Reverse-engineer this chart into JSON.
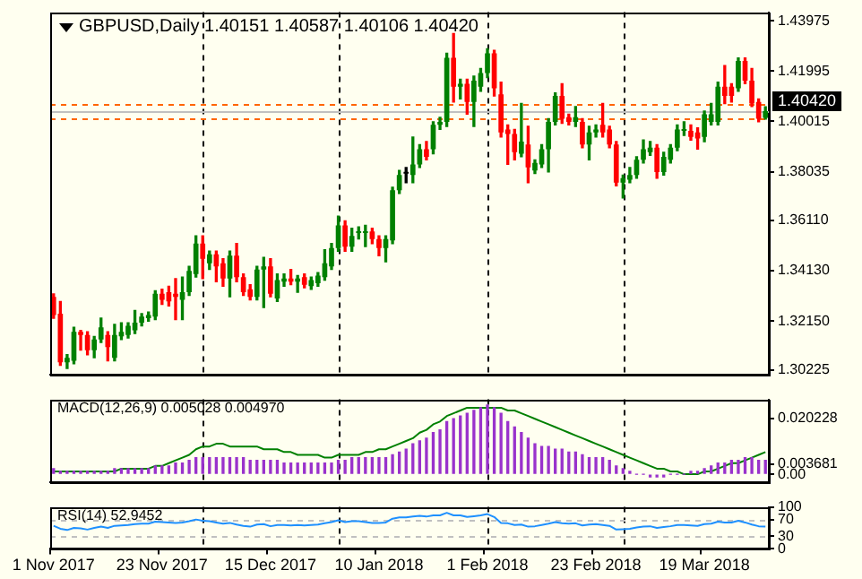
{
  "chart_data": [
    {
      "type": "candlestick",
      "title": "GBPUSD,Daily 1.40151 1.40587 1.40106 1.40420",
      "tick_labels": "y",
      "ohlc": [
        [
          1.331,
          1.3322,
          1.3226,
          1.3238
        ],
        [
          1.3244,
          1.3292,
          1.304,
          1.3052
        ],
        [
          1.3052,
          1.3082,
          1.3028,
          1.307
        ],
        [
          1.3058,
          1.319,
          1.3046,
          1.3172
        ],
        [
          1.3172,
          1.3178,
          1.31,
          1.316
        ],
        [
          1.316,
          1.3172,
          1.3082,
          1.31
        ],
        [
          1.31,
          1.3154,
          1.307,
          1.3142
        ],
        [
          1.3142,
          1.3226,
          1.313,
          1.319
        ],
        [
          1.316,
          1.3172,
          1.3058,
          1.3112
        ],
        [
          1.307,
          1.3202,
          1.3058,
          1.316
        ],
        [
          1.3154,
          1.3208,
          1.3142,
          1.3172
        ],
        [
          1.316,
          1.3208,
          1.3148,
          1.3196
        ],
        [
          1.3178,
          1.3256,
          1.3166,
          1.3208
        ],
        [
          1.3208,
          1.3244,
          1.3196,
          1.3232
        ],
        [
          1.3226,
          1.325,
          1.3214,
          1.3238
        ],
        [
          1.3232,
          1.3334,
          1.322,
          1.3322
        ],
        [
          1.3322,
          1.334,
          1.328,
          1.3298
        ],
        [
          1.3328,
          1.3352,
          1.3274,
          1.3292
        ],
        [
          1.3322,
          1.3382,
          1.322,
          1.331
        ],
        [
          1.3298,
          1.3388,
          1.322,
          1.3328
        ],
        [
          1.3328,
          1.343,
          1.3316,
          1.3412
        ],
        [
          1.34,
          1.355,
          1.3388,
          1.352
        ],
        [
          1.352,
          1.355,
          1.3382,
          1.346
        ],
        [
          1.3442,
          1.349,
          1.3418,
          1.3478
        ],
        [
          1.3478,
          1.349,
          1.337,
          1.343
        ],
        [
          1.3442,
          1.346,
          1.3352,
          1.3382
        ],
        [
          1.3382,
          1.349,
          1.331,
          1.3472
        ],
        [
          1.3472,
          1.352,
          1.337,
          1.3388
        ],
        [
          1.3388,
          1.34,
          1.3316,
          1.3328
        ],
        [
          1.334,
          1.3358,
          1.3298,
          1.331
        ],
        [
          1.331,
          1.343,
          1.3298,
          1.3418
        ],
        [
          1.3418,
          1.3466,
          1.3268,
          1.343
        ],
        [
          1.343,
          1.346,
          1.331,
          1.3322
        ],
        [
          1.3304,
          1.34,
          1.3292,
          1.3376
        ],
        [
          1.337,
          1.34,
          1.3352,
          1.3382
        ],
        [
          1.3382,
          1.3418,
          1.3358,
          1.337
        ],
        [
          1.337,
          1.3394,
          1.3328,
          1.3382
        ],
        [
          1.3388,
          1.34,
          1.3346,
          1.3358
        ],
        [
          1.3352,
          1.3388,
          1.334,
          1.3376
        ],
        [
          1.3364,
          1.3406,
          1.3352,
          1.3394
        ],
        [
          1.3388,
          1.3496,
          1.3376,
          1.3442
        ],
        [
          1.343,
          1.352,
          1.3418,
          1.3502
        ],
        [
          1.3502,
          1.3628,
          1.349,
          1.3592
        ],
        [
          1.3592,
          1.361,
          1.349,
          1.3508
        ],
        [
          1.3508,
          1.358,
          1.349,
          1.355
        ],
        [
          1.3562,
          1.3586,
          1.3538,
          1.3568
        ],
        [
          1.3562,
          1.3592,
          1.3508,
          1.3568
        ],
        [
          1.3568,
          1.358,
          1.352,
          1.3538
        ],
        [
          1.3538,
          1.355,
          1.3472,
          1.3502
        ],
        [
          1.3502,
          1.355,
          1.3448,
          1.3538
        ],
        [
          1.3532,
          1.3742,
          1.352,
          1.373
        ],
        [
          1.373,
          1.3808,
          1.3718,
          1.379
        ],
        [
          1.3796,
          1.382,
          1.376,
          1.3796
        ],
        [
          1.379,
          1.394,
          1.376,
          1.3832
        ],
        [
          1.3832,
          1.391,
          1.382,
          1.3892
        ],
        [
          1.3892,
          1.3922,
          1.385,
          1.3862
        ],
        [
          1.3892,
          1.4,
          1.3874,
          1.3988
        ],
        [
          1.3988,
          1.4018,
          1.397,
          1.4
        ],
        [
          1.4,
          1.427,
          1.3982,
          1.4252
        ],
        [
          1.4252,
          1.4348,
          1.4078,
          1.4138
        ],
        [
          1.4138,
          1.4168,
          1.409,
          1.415
        ],
        [
          1.415,
          1.4168,
          1.403,
          1.4078
        ],
        [
          1.4078,
          1.418,
          1.3982,
          1.4162
        ],
        [
          1.4138,
          1.421,
          1.412,
          1.4192
        ],
        [
          1.4192,
          1.4288,
          1.4174,
          1.427
        ],
        [
          1.427,
          1.4282,
          1.4102,
          1.4132
        ],
        [
          1.4108,
          1.4156,
          1.394,
          1.3958
        ],
        [
          1.397,
          1.3988,
          1.3832,
          1.3952
        ],
        [
          1.3952,
          1.397,
          1.385,
          1.388
        ],
        [
          1.3874,
          1.4072,
          1.3862,
          1.3922
        ],
        [
          1.391,
          1.3982,
          1.376,
          1.382
        ],
        [
          1.3808,
          1.385,
          1.3796,
          1.3838
        ],
        [
          1.3832,
          1.391,
          1.382,
          1.3892
        ],
        [
          1.3892,
          1.4012,
          1.3802,
          1.4
        ],
        [
          1.4,
          1.4114,
          1.3988,
          1.4102
        ],
        [
          1.4102,
          1.415,
          1.3994,
          1.4012
        ],
        [
          1.4018,
          1.403,
          1.3988,
          1.4
        ],
        [
          1.4,
          1.406,
          1.3982,
          1.4018
        ],
        [
          1.4,
          1.4012,
          1.3898,
          1.391
        ],
        [
          1.391,
          1.3982,
          1.385,
          1.3958
        ],
        [
          1.3958,
          1.3988,
          1.394,
          1.397
        ],
        [
          1.3988,
          1.4072,
          1.394,
          1.3958
        ],
        [
          1.397,
          1.3982,
          1.3898,
          1.391
        ],
        [
          1.391,
          1.3922,
          1.3748,
          1.376
        ],
        [
          1.376,
          1.379,
          1.37,
          1.3778
        ],
        [
          1.3772,
          1.382,
          1.376,
          1.379
        ],
        [
          1.379,
          1.3862,
          1.3778,
          1.385
        ],
        [
          1.385,
          1.3928,
          1.3838,
          1.3892
        ],
        [
          1.388,
          1.3922,
          1.3868,
          1.3898
        ],
        [
          1.3898,
          1.391,
          1.3778,
          1.3802
        ],
        [
          1.3802,
          1.388,
          1.379,
          1.3862
        ],
        [
          1.385,
          1.391,
          1.3838,
          1.3898
        ],
        [
          1.3898,
          1.3988,
          1.3886,
          1.397
        ],
        [
          1.3964,
          1.4,
          1.3946,
          1.397
        ],
        [
          1.3964,
          1.3988,
          1.3928,
          1.394
        ],
        [
          1.3958,
          1.3976,
          1.3892,
          1.3934
        ],
        [
          1.394,
          1.4042,
          1.3922,
          1.403
        ],
        [
          1.4,
          1.4072,
          1.3988,
          1.403
        ],
        [
          1.4,
          1.4156,
          1.3988,
          1.4138
        ],
        [
          1.4138,
          1.4222,
          1.4072,
          1.4102
        ],
        [
          1.4138,
          1.415,
          1.4078,
          1.4102
        ],
        [
          1.4132,
          1.4252,
          1.412,
          1.424
        ],
        [
          1.424,
          1.4252,
          1.415,
          1.4162
        ],
        [
          1.4162,
          1.421,
          1.406,
          1.4072
        ],
        [
          1.4078,
          1.409,
          1.4,
          1.4012
        ],
        [
          1.40151,
          1.40587,
          1.40106,
          1.4042
        ]
      ],
      "colors": [
        "#ff0000",
        "#ff0000",
        "#008000",
        "#008000",
        "#ff0000",
        "#ff0000",
        "#008000",
        "#008000",
        "#ff0000",
        "#008000",
        "#008000",
        "#008000",
        "#008000",
        "#008000",
        "#008000",
        "#008000",
        "#ff0000",
        "#ff0000",
        "#ff0000",
        "#008000",
        "#008000",
        "#008000",
        "#ff0000",
        "#008000",
        "#ff0000",
        "#ff0000",
        "#008000",
        "#ff0000",
        "#ff0000",
        "#ff0000",
        "#008000",
        "#008000",
        "#ff0000",
        "#008000",
        "#008000",
        "#ff0000",
        "#008000",
        "#ff0000",
        "#008000",
        "#008000",
        "#008000",
        "#008000",
        "#008000",
        "#ff0000",
        "#008000",
        "#008000",
        "#008000",
        "#ff0000",
        "#ff0000",
        "#008000",
        "#008000",
        "#008000",
        "#000000",
        "#008000",
        "#008000",
        "#ff0000",
        "#008000",
        "#008000",
        "#008000",
        "#ff0000",
        "#008000",
        "#ff0000",
        "#008000",
        "#008000",
        "#008000",
        "#ff0000",
        "#ff0000",
        "#ff0000",
        "#ff0000",
        "#008000",
        "#ff0000",
        "#008000",
        "#008000",
        "#008000",
        "#008000",
        "#ff0000",
        "#ff0000",
        "#008000",
        "#ff0000",
        "#008000",
        "#008000",
        "#ff0000",
        "#ff0000",
        "#ff0000",
        "#008000",
        "#008000",
        "#008000",
        "#008000",
        "#008000",
        "#ff0000",
        "#008000",
        "#008000",
        "#008000",
        "#008000",
        "#ff0000",
        "#ff0000",
        "#008000",
        "#008000",
        "#008000",
        "#ff0000",
        "#ff0000",
        "#008000",
        "#ff0000",
        "#ff0000",
        "#ff0000",
        "#008000"
      ],
      "ylim": [
        1.3002,
        1.4432
      ],
      "yticks": [
        1.30225,
        {
          "value": 1.3215,
          "label": "1.32150"
        },
        {
          "value": 1.3413,
          "label": "1.34130"
        },
        {
          "value": 1.3611,
          "label": "1.36110"
        },
        1.38035,
        1.40015,
        1.41995,
        1.43975
      ],
      "ref_lines": [
        {
          "axis": "y",
          "value": 1.4042,
          "label": "1.40420",
          "color": "#c0c0c0"
        },
        {
          "axis": "y",
          "value": 1.4072,
          "color": "#ff6600",
          "line_style": "dashed"
        },
        {
          "axis": "y",
          "value": 1.4012,
          "color": "#ff6600",
          "line_style": "dashed"
        }
      ]
    },
    {
      "type": "bar",
      "title": "MACD(12,26,9) 0.005028 0.004970",
      "tick_labels": "y",
      "series": [
        {
          "type": "bar",
          "color": "#9932cc",
          "values": [
            0.002,
            0.001,
            0.001,
            0.001,
            0.001,
            0.001,
            0.001,
            0.001,
            0.001,
            0.002,
            0.002,
            0.002,
            0.002,
            0.002,
            0.002,
            0.003,
            0.003,
            0.003,
            0.004,
            0.004,
            0.005,
            0.006,
            0.006,
            0.006,
            0.006,
            0.006,
            0.006,
            0.006,
            0.006,
            0.005,
            0.005,
            0.005,
            0.005,
            0.005,
            0.004,
            0.004,
            0.004,
            0.004,
            0.004,
            0.004,
            0.004,
            0.004,
            0.005,
            0.005,
            0.006,
            0.006,
            0.006,
            0.006,
            0.006,
            0.006,
            0.007,
            0.008,
            0.009,
            0.011,
            0.012,
            0.013,
            0.015,
            0.016,
            0.019,
            0.02,
            0.021,
            0.022,
            0.023,
            0.024,
            0.025,
            0.024,
            0.022,
            0.019,
            0.017,
            0.015,
            0.013,
            0.011,
            0.01,
            0.01,
            0.009,
            0.009,
            0.008,
            0.008,
            0.007,
            0.006,
            0.006,
            0.006,
            0.005,
            0.003,
            0.002,
            0.001,
            0,
            0,
            -0.001,
            -0.001,
            -0.001,
            0,
            0,
            0,
            0.001,
            0.001,
            0.002,
            0.003,
            0.004,
            0.004,
            0.005,
            0.005,
            0.006,
            0.006,
            0.005,
            0.005
          ]
        },
        {
          "type": "line",
          "color": "#008000",
          "values": [
            0.001,
            0.001,
            0.001,
            0.001,
            0.001,
            0.001,
            0.001,
            0.001,
            0.001,
            0.001,
            0.002,
            0.002,
            0.002,
            0.002,
            0.002,
            0.003,
            0.003,
            0.004,
            0.005,
            0.006,
            0.007,
            0.009,
            0.01,
            0.01,
            0.011,
            0.011,
            0.01,
            0.01,
            0.01,
            0.01,
            0.01,
            0.009,
            0.009,
            0.009,
            0.008,
            0.008,
            0.007,
            0.007,
            0.007,
            0.007,
            0.006,
            0.006,
            0.007,
            0.007,
            0.007,
            0.007,
            0.008,
            0.008,
            0.009,
            0.009,
            0.01,
            0.011,
            0.012,
            0.013,
            0.015,
            0.016,
            0.018,
            0.019,
            0.021,
            0.022,
            0.023,
            0.024,
            0.024,
            0.024,
            0.024,
            0.024,
            0.024,
            0.023,
            0.023,
            0.022,
            0.021,
            0.02,
            0.019,
            0.018,
            0.017,
            0.016,
            0.015,
            0.014,
            0.013,
            0.012,
            0.011,
            0.01,
            0.009,
            0.008,
            0.007,
            0.006,
            0.005,
            0.004,
            0.003,
            0.002,
            0.002,
            0.001,
            0.001,
            0,
            0,
            0,
            0.001,
            0.001,
            0.002,
            0.003,
            0.004,
            0.004,
            0.005,
            0.006,
            0.007,
            0.008
          ]
        }
      ],
      "ylim": [
        -0.003,
        0.027
      ],
      "yticks": [
        {
          "value": 0,
          "label": "0.00"
        },
        0.003681,
        0.020228
      ]
    },
    {
      "type": "line",
      "title": "RSI(14) 52.9452",
      "categories": [
        "1 Nov 2017",
        null,
        null,
        null,
        null,
        null,
        null,
        null,
        null,
        null,
        null,
        null,
        null,
        null,
        null,
        null,
        "23 Nov 2017",
        null,
        null,
        null,
        null,
        null,
        null,
        null,
        null,
        null,
        null,
        null,
        null,
        null,
        null,
        null,
        "15 Dec 2017",
        null,
        null,
        null,
        null,
        null,
        null,
        null,
        null,
        null,
        null,
        null,
        null,
        null,
        null,
        null,
        "10 Jan 2018",
        null,
        null,
        null,
        null,
        null,
        null,
        null,
        null,
        null,
        null,
        null,
        null,
        null,
        null,
        null,
        "1 Feb 2018",
        null,
        null,
        null,
        null,
        null,
        null,
        null,
        null,
        null,
        null,
        null,
        null,
        null,
        null,
        null,
        "23 Feb 2018",
        null,
        null,
        null,
        null,
        null,
        null,
        null,
        null,
        null,
        null,
        null,
        null,
        null,
        null,
        null,
        "19 Mar 2018",
        null,
        null,
        null,
        null,
        null,
        null,
        null,
        null,
        null
      ],
      "series": [
        {
          "color": "#1e90ff",
          "values": [
            55,
            48,
            45,
            50,
            49,
            46,
            50,
            53,
            50,
            55,
            56,
            57,
            59,
            60,
            60,
            65,
            64,
            63,
            62,
            63,
            66,
            70,
            67,
            66,
            63,
            60,
            62,
            58,
            55,
            53,
            58,
            59,
            54,
            57,
            57,
            56,
            57,
            56,
            57,
            58,
            61,
            64,
            68,
            64,
            66,
            66,
            64,
            62,
            62,
            63,
            72,
            75,
            75,
            77,
            79,
            77,
            80,
            80,
            86,
            80,
            80,
            76,
            78,
            80,
            83,
            76,
            62,
            61,
            57,
            58,
            53,
            54,
            57,
            60,
            64,
            61,
            60,
            61,
            56,
            58,
            59,
            57,
            55,
            46,
            47,
            48,
            51,
            53,
            54,
            50,
            52,
            54,
            57,
            57,
            56,
            55,
            59,
            60,
            65,
            63,
            63,
            67,
            63,
            58,
            54,
            53
          ]
        }
      ],
      "ylim": [
        0,
        100
      ],
      "yticks": [
        0,
        30,
        70,
        100
      ],
      "ref_lines": [
        {
          "axis": "y",
          "value": 70,
          "color": "#c0c0c0",
          "line_style": "dashed"
        },
        {
          "axis": "y",
          "value": 30,
          "color": "#c0c0c0",
          "line_style": "dashed"
        }
      ]
    }
  ]
}
